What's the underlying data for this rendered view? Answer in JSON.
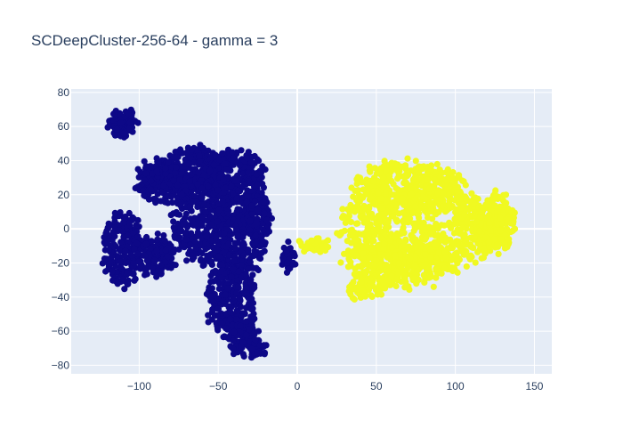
{
  "chart_data": {
    "type": "scatter",
    "title": "SCDeepCluster-256-64 - gamma = 3",
    "xlabel": "",
    "ylabel": "",
    "xlim": [
      -143,
      161
    ],
    "ylim": [
      -85,
      82
    ],
    "xticks": [
      -100,
      -50,
      0,
      50,
      100,
      150
    ],
    "yticks": [
      -80,
      -60,
      -40,
      -20,
      0,
      20,
      40,
      60,
      80
    ],
    "xtick_labels": [
      "−100",
      "−50",
      "0",
      "50",
      "100",
      "150"
    ],
    "ytick_labels": [
      "−80",
      "−60",
      "−40",
      "−20",
      "0",
      "20",
      "40",
      "60",
      "80"
    ],
    "grid": true,
    "legend": "none",
    "colors": {
      "plot_background": "#e5ecf6",
      "grid": "#ffffff",
      "text": "#2a3f5f",
      "cluster_0": "#0d0887",
      "cluster_1": "#f0f921"
    },
    "series": [
      {
        "color": "#0d0887",
        "regions": [
          {
            "cx": -110,
            "cy": 62,
            "rx": 9,
            "ry": 8,
            "n": 90
          },
          {
            "cx": -84,
            "cy": 28,
            "rx": 18,
            "ry": 14,
            "n": 230
          },
          {
            "cx": -110,
            "cy": -12,
            "rx": 12,
            "ry": 22,
            "n": 180
          },
          {
            "cx": -90,
            "cy": -15,
            "rx": 14,
            "ry": 12,
            "n": 130
          },
          {
            "cx": -65,
            "cy": 35,
            "rx": 18,
            "ry": 14,
            "n": 230
          },
          {
            "cx": -40,
            "cy": 30,
            "rx": 20,
            "ry": 16,
            "n": 260
          },
          {
            "cx": -60,
            "cy": 5,
            "rx": 20,
            "ry": 24,
            "n": 300
          },
          {
            "cx": -38,
            "cy": -5,
            "rx": 18,
            "ry": 26,
            "n": 300
          },
          {
            "cx": -42,
            "cy": -40,
            "rx": 16,
            "ry": 22,
            "n": 250
          },
          {
            "cx": -35,
            "cy": -62,
            "rx": 10,
            "ry": 12,
            "n": 100
          },
          {
            "cx": -25,
            "cy": -70,
            "rx": 5,
            "ry": 5,
            "n": 40
          },
          {
            "cx": -24,
            "cy": 5,
            "rx": 7,
            "ry": 18,
            "n": 90
          },
          {
            "cx": -6,
            "cy": -18,
            "rx": 4,
            "ry": 8,
            "n": 40
          }
        ]
      },
      {
        "color": "#f0f921",
        "regions": [
          {
            "cx": 70,
            "cy": 25,
            "rx": 35,
            "ry": 15,
            "n": 330
          },
          {
            "cx": 80,
            "cy": 0,
            "rx": 55,
            "ry": 24,
            "n": 700
          },
          {
            "cx": 65,
            "cy": -20,
            "rx": 35,
            "ry": 14,
            "n": 330
          },
          {
            "cx": 125,
            "cy": 5,
            "rx": 14,
            "ry": 16,
            "n": 170
          },
          {
            "cx": 10,
            "cy": -10,
            "rx": 8,
            "ry": 4,
            "n": 50
          },
          {
            "cx": 45,
            "cy": -35,
            "rx": 14,
            "ry": 5,
            "n": 70
          }
        ]
      }
    ]
  }
}
